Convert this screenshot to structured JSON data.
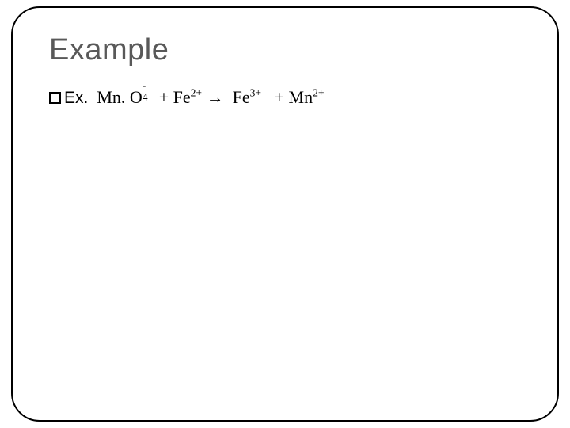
{
  "slide": {
    "title": "Example",
    "title_color": "#595959",
    "title_fontsize": 38,
    "frame_border_color": "#000000",
    "frame_border_radius": 36,
    "background_color": "#ffffff",
    "body": {
      "bullet_style": "hollow-square",
      "label": "Ex.",
      "label_fontfamily": "Arial",
      "equation_fontfamily": "Times New Roman",
      "fontsize": 22,
      "text_color": "#000000",
      "equation": {
        "reactants": [
          {
            "base": "Mn. O",
            "sub": "4",
            "sup": "-"
          },
          {
            "base": "Fe",
            "sup": "2+"
          }
        ],
        "arrow": "→",
        "products": [
          {
            "base": "Fe",
            "sup": "3+"
          },
          {
            "base": "Mn",
            "sup": "2+"
          }
        ],
        "joiner": " + "
      }
    }
  }
}
